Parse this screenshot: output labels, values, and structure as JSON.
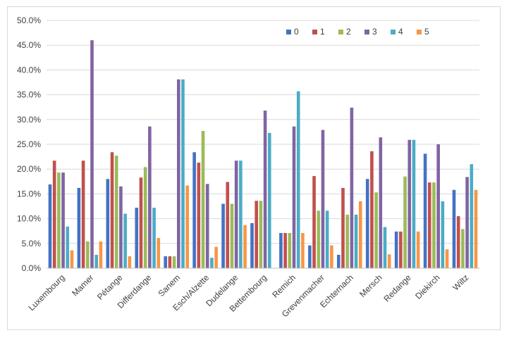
{
  "chart_data": {
    "type": "bar",
    "title": "",
    "xlabel": "",
    "ylabel": "",
    "ylim": [
      0,
      0.5
    ],
    "yticks": [
      0,
      0.05,
      0.1,
      0.15,
      0.2,
      0.25,
      0.3,
      0.35,
      0.4,
      0.45,
      0.5
    ],
    "ytick_labels": [
      "0.0%",
      "5.0%",
      "10.0%",
      "15.0%",
      "20.0%",
      "25.0%",
      "30.0%",
      "35.0%",
      "40.0%",
      "45.0%",
      "50.0%"
    ],
    "grid": true,
    "legend_position": "top-right",
    "categories": [
      "Luxembourg",
      "Mamer",
      "Pétange",
      "Differdange",
      "Sanem",
      "Esch/Alzette",
      "Dudelange",
      "Bettembourg",
      "Remich",
      "Grevenmacher",
      "Echternach",
      "Mersch",
      "Redange",
      "Diekirch",
      "Wiltz"
    ],
    "series": [
      {
        "name": "0",
        "color": "#4472c4",
        "values": [
          0.169,
          0.162,
          0.18,
          0.122,
          0.024,
          0.234,
          0.13,
          0.091,
          0.071,
          0.046,
          0.027,
          0.18,
          0.074,
          0.231,
          0.158
        ]
      },
      {
        "name": "1",
        "color": "#c0504d",
        "values": [
          0.217,
          0.217,
          0.234,
          0.183,
          0.024,
          0.213,
          0.174,
          0.136,
          0.071,
          0.186,
          0.162,
          0.236,
          0.074,
          0.173,
          0.105
        ]
      },
      {
        "name": "2",
        "color": "#9bbb59",
        "values": [
          0.193,
          0.054,
          0.227,
          0.204,
          0.024,
          0.277,
          0.13,
          0.136,
          0.071,
          0.116,
          0.108,
          0.153,
          0.185,
          0.173,
          0.079
        ]
      },
      {
        "name": "3",
        "color": "#8064a2",
        "values": [
          0.193,
          0.46,
          0.165,
          0.286,
          0.381,
          0.17,
          0.217,
          0.318,
          0.286,
          0.279,
          0.324,
          0.264,
          0.259,
          0.25,
          0.184
        ]
      },
      {
        "name": "4",
        "color": "#4bacc6",
        "values": [
          0.084,
          0.027,
          0.11,
          0.122,
          0.381,
          0.021,
          0.217,
          0.273,
          0.357,
          0.116,
          0.108,
          0.083,
          0.259,
          0.135,
          0.21
        ]
      },
      {
        "name": "5",
        "color": "#f79646",
        "values": [
          0.036,
          0.054,
          0.024,
          0.061,
          0.167,
          0.043,
          0.087,
          0.0,
          0.071,
          0.046,
          0.135,
          0.028,
          0.074,
          0.038,
          0.158
        ]
      }
    ]
  }
}
